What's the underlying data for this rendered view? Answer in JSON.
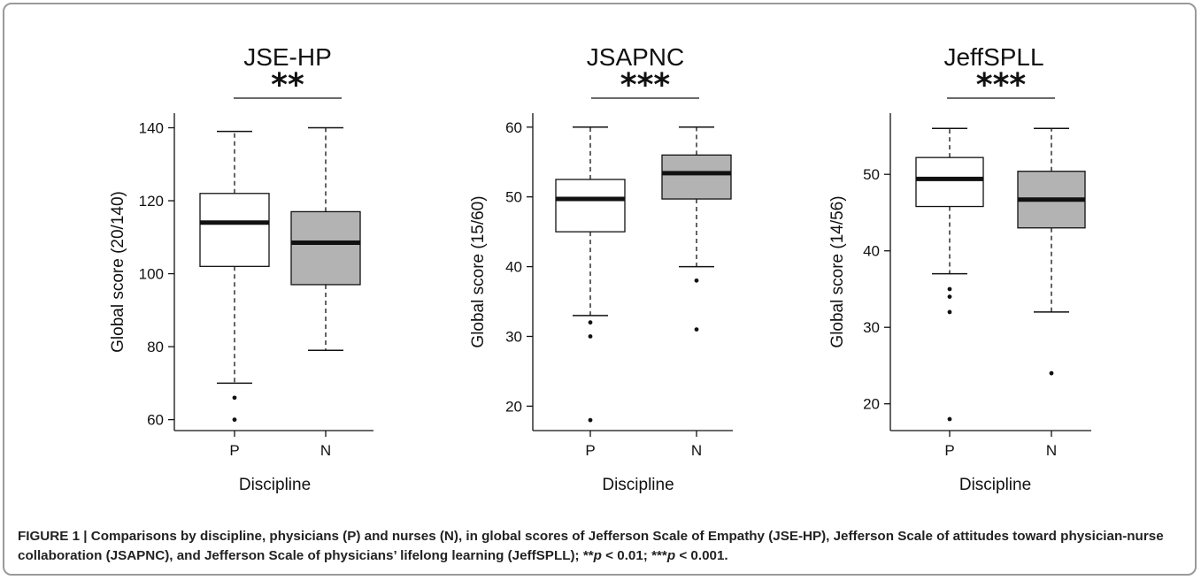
{
  "caption": {
    "lead": "FIGURE 1 | Comparisons by discipline, physicians (P) and nurses (N), in global scores of Jefferson Scale of Empathy (JSE-HP), Jefferson Scale of attitudes toward physician-nurse collaboration (JSAPNC), and Jefferson Scale of physicians’ lifelong learning (JeffSPLL); **",
    "p1": "p",
    "mid": " < 0.01; ***",
    "p2": "p",
    "tail": " < 0.001."
  },
  "colors": {
    "P": "#ffffff",
    "N": "#b3b3b3",
    "line": "#111111"
  },
  "chart_data": [
    {
      "type": "boxplot",
      "title": "JSE-HP",
      "significance": "**",
      "xlabel": "Discipline",
      "ylabel": "Global score (20/140)",
      "categories": [
        "P",
        "N"
      ],
      "ylim": [
        57,
        144
      ],
      "yticks": [
        60,
        80,
        100,
        120,
        140
      ],
      "boxes": [
        {
          "name": "P",
          "whisker_low": 70,
          "q1": 102,
          "median": 114,
          "q3": 122,
          "whisker_high": 139,
          "outliers": [
            66,
            60
          ]
        },
        {
          "name": "N",
          "whisker_low": 79,
          "q1": 97,
          "median": 108.5,
          "q3": 117,
          "whisker_high": 140,
          "outliers": []
        }
      ]
    },
    {
      "type": "boxplot",
      "title": "JSAPNC",
      "significance": "***",
      "xlabel": "Discipline",
      "ylabel": "Global score (15/60)",
      "categories": [
        "P",
        "N"
      ],
      "ylim": [
        16.5,
        62
      ],
      "yticks": [
        20,
        30,
        40,
        50,
        60
      ],
      "boxes": [
        {
          "name": "P",
          "whisker_low": 33,
          "q1": 45,
          "median": 49.7,
          "q3": 52.5,
          "whisker_high": 60,
          "outliers": [
            32,
            30,
            18
          ]
        },
        {
          "name": "N",
          "whisker_low": 40,
          "q1": 49.7,
          "median": 53.4,
          "q3": 56,
          "whisker_high": 60,
          "outliers": [
            38,
            31
          ]
        }
      ]
    },
    {
      "type": "boxplot",
      "title": "JeffSPLL",
      "significance": "***",
      "xlabel": "Discipline",
      "ylabel": "Global score (14/56)",
      "categories": [
        "P",
        "N"
      ],
      "ylim": [
        16.5,
        58
      ],
      "yticks": [
        20,
        30,
        40,
        50
      ],
      "boxes": [
        {
          "name": "P",
          "whisker_low": 37,
          "q1": 45.8,
          "median": 49.4,
          "q3": 52.2,
          "whisker_high": 56,
          "outliers": [
            35,
            34,
            32,
            18
          ]
        },
        {
          "name": "N",
          "whisker_low": 32,
          "q1": 43,
          "median": 46.7,
          "q3": 50.4,
          "whisker_high": 56,
          "outliers": [
            24
          ]
        }
      ]
    }
  ]
}
